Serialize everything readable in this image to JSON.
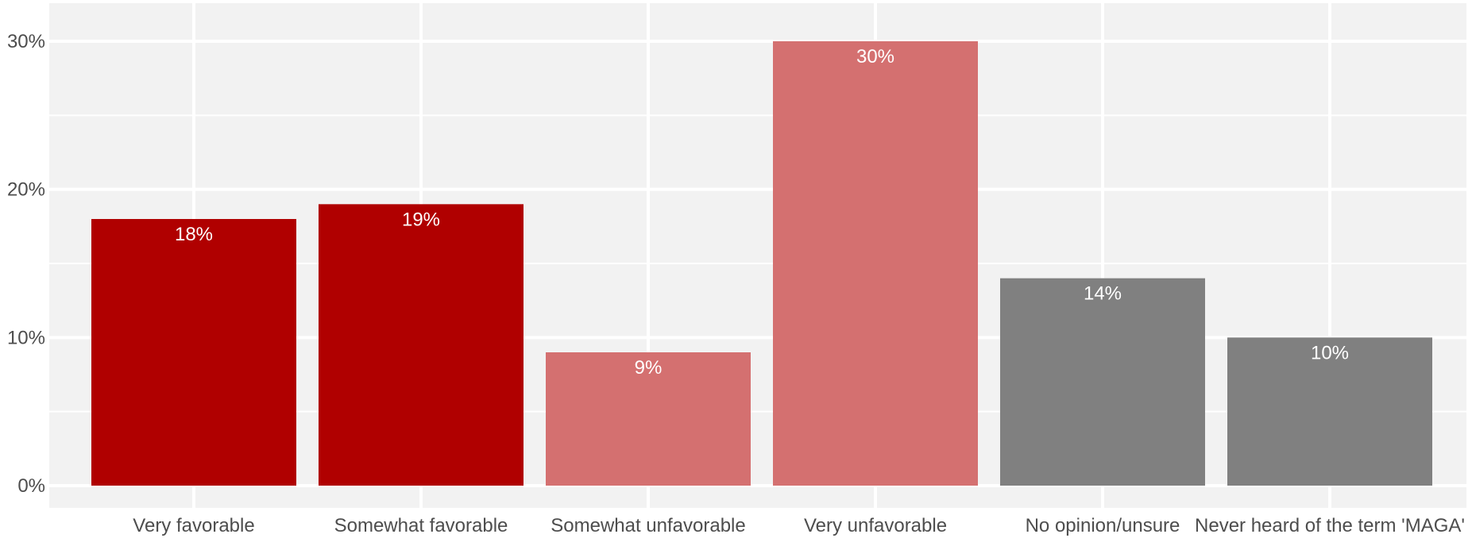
{
  "chart_data": {
    "type": "bar",
    "categories": [
      "Very favorable",
      "Somewhat favorable",
      "Somewhat unfavorable",
      "Very unfavorable",
      "No opinion/unsure",
      "Never heard of the term 'MAGA'"
    ],
    "values": [
      18,
      19,
      9,
      30,
      14,
      10
    ],
    "data_labels": [
      "18%",
      "19%",
      "9%",
      "30%",
      "14%",
      "10%"
    ],
    "bar_colors": [
      "#b00000",
      "#b00000",
      "#d47070",
      "#d47070",
      "#808080",
      "#808080"
    ],
    "ylim": [
      0,
      30
    ],
    "yticks": [
      0,
      10,
      20,
      30
    ],
    "ytick_labels": [
      "0%",
      "10%",
      "20%",
      "30%"
    ],
    "grid": true,
    "panel_color": "#f2f2f2",
    "title": "",
    "xlabel": "",
    "ylabel": ""
  }
}
